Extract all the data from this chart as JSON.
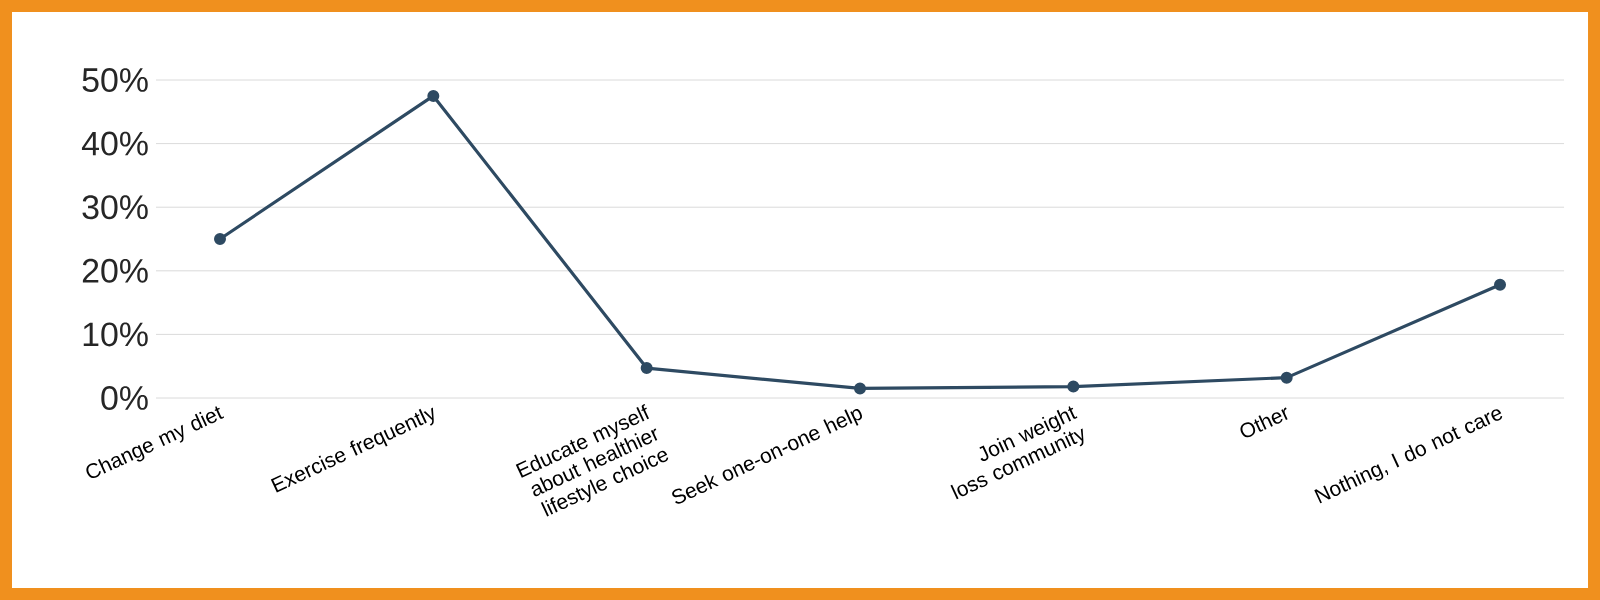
{
  "chart_data": {
    "type": "line",
    "categories": [
      "Change my diet",
      "Exercise frequently",
      "Educate myself about healthier lifestyle choice",
      "Seek one-on-one help",
      "Join weight loss community",
      "Other",
      "Nothing, I do not care"
    ],
    "values": [
      25,
      47.5,
      4.7,
      1.5,
      1.8,
      3.2,
      17.8
    ],
    "color": "#2e4a62",
    "marker": "circle",
    "line_style": "solid",
    "grid": "y",
    "ylim": [
      0,
      50
    ],
    "yticks": [
      {
        "value": 0,
        "label": "0%"
      },
      {
        "value": 10,
        "label": "10%"
      },
      {
        "value": 20,
        "label": "20%"
      },
      {
        "value": 30,
        "label": "30%"
      },
      {
        "value": 40,
        "label": "40%"
      },
      {
        "value": 50,
        "label": "50%"
      }
    ]
  }
}
